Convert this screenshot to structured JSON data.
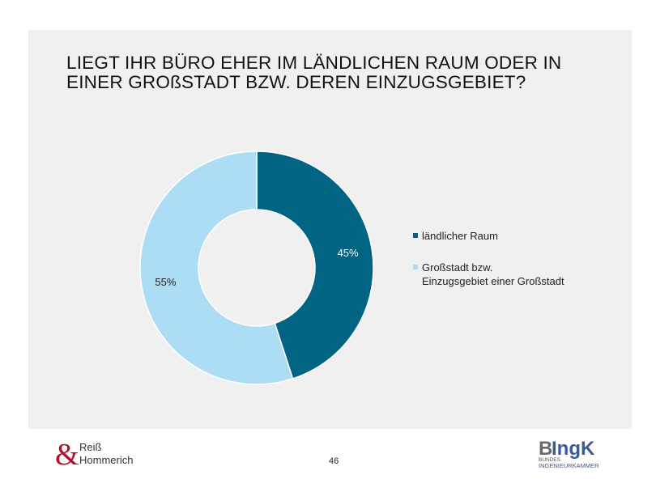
{
  "title": "LIEGT IHR BÜRO EHER IM LÄNDLICHEN RAUM ODER IN EINER GROßSTADT BZW. DEREN EINZUGSGEBIET?",
  "chart_data": {
    "type": "pie",
    "variant": "donut",
    "title": "LIEGT IHR BÜRO EHER IM LÄNDLICHEN RAUM ODER IN EINER GROßSTADT BZW. DEREN EINZUGSGEBIET?",
    "categories": [
      "ländlicher Raum",
      "Großstadt bzw. Einzugsgebiet einer Großstadt"
    ],
    "values": [
      45,
      55
    ],
    "labels": [
      "45%",
      "55%"
    ],
    "colors": [
      "#006482",
      "#addcf5"
    ],
    "legend_position": "right"
  },
  "legend": [
    {
      "line1": "ländlicher Raum",
      "line2": ""
    },
    {
      "line1": "Großstadt bzw.",
      "line2": "Einzugsgebiet einer Großstadt"
    }
  ],
  "footer": {
    "page": "46",
    "logo_left": "Reiß Hommerich",
    "logo_right": "BIngK BUNDES INGENIEURKAMMER"
  }
}
